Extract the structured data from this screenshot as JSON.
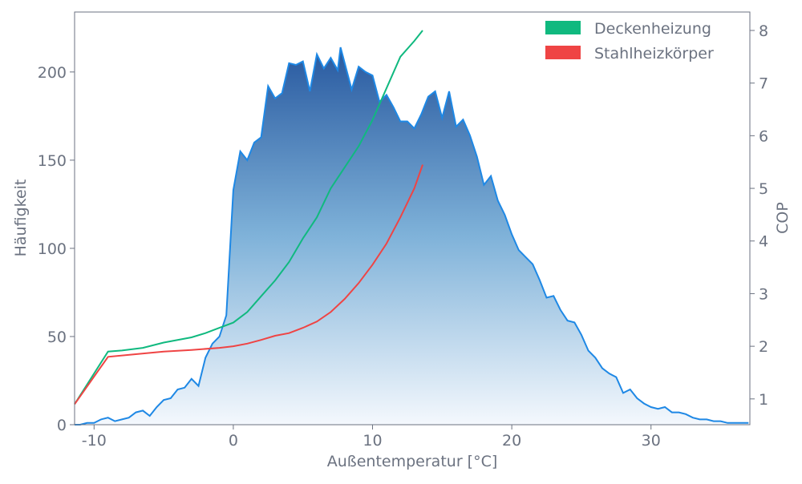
{
  "chart_data": {
    "type": "area",
    "xlabel": "Außentemperatur [°C]",
    "ylabel": "Häufigkeit",
    "y2label": "COP",
    "xlim": [
      -11.4,
      37.1
    ],
    "ylim": [
      0,
      234
    ],
    "y2lim": [
      0.51,
      8.35
    ],
    "xticks": [
      -10,
      0,
      10,
      20,
      30
    ],
    "yticks": [
      0,
      50,
      100,
      150,
      200
    ],
    "y2ticks": [
      1,
      2,
      3,
      4,
      5,
      6,
      7,
      8
    ],
    "legend": "upper right",
    "series": [
      {
        "type": "area",
        "color": "#1e88e5",
        "x": [
          -11.4,
          -11,
          -10.5,
          -10,
          -9.5,
          -9,
          -8.5,
          -8,
          -7.5,
          -7,
          -6.5,
          -6,
          -5.5,
          -5,
          -4.5,
          -4,
          -3.5,
          -3,
          -2.5,
          -2,
          -1.5,
          -1,
          -0.5,
          0,
          0.5,
          1,
          1.5,
          2,
          2.5,
          3,
          3.5,
          4,
          4.5,
          5,
          5.5,
          6,
          6.5,
          7,
          7.5,
          7.7,
          8.5,
          9,
          9.5,
          10,
          10.5,
          11,
          11.5,
          12,
          12.5,
          13,
          13.5,
          14,
          14.5,
          15,
          15.5,
          16,
          16.5,
          17,
          17.5,
          18,
          18.5,
          19,
          19.5,
          20,
          20.5,
          21,
          21.5,
          22,
          22.5,
          23,
          23.5,
          24,
          24.5,
          25,
          25.5,
          26,
          26.5,
          27,
          27.5,
          28,
          28.5,
          29,
          29.5,
          30,
          30.5,
          31,
          31.5,
          32,
          32.5,
          33,
          33.5,
          34,
          34.5,
          35,
          35.5,
          36,
          36.5,
          37
        ],
        "values": [
          0,
          0,
          1,
          1,
          3,
          4,
          2,
          3,
          4,
          7,
          8,
          5,
          10,
          14,
          15,
          20,
          21,
          26,
          22,
          38,
          46,
          50,
          62,
          133,
          155,
          150,
          160,
          163,
          192,
          185,
          188,
          205,
          204,
          206,
          189,
          210,
          202,
          208,
          201,
          214,
          190,
          203,
          200,
          198,
          183,
          187,
          180,
          172,
          172,
          168,
          176,
          186,
          189,
          174,
          189,
          169,
          173,
          164,
          152,
          136,
          141,
          127,
          119,
          108,
          99,
          95,
          91,
          82,
          72,
          73,
          65,
          59,
          58,
          51,
          42,
          38,
          32,
          29,
          27,
          18,
          20,
          15,
          12,
          10,
          9,
          10,
          7,
          7,
          6,
          4,
          3,
          3,
          2,
          2,
          1,
          1,
          1,
          1
        ]
      },
      {
        "type": "line",
        "name": "Deckenheizung",
        "color": "#10b97f",
        "axis": "y2",
        "x": [
          -11.4,
          -9,
          -8,
          -6.5,
          -5,
          -3,
          -2,
          -1,
          0,
          1,
          2,
          3,
          4,
          5,
          6,
          7,
          8,
          9,
          10,
          11,
          12,
          13,
          13.6
        ],
        "values": [
          0.9,
          1.9,
          1.92,
          1.97,
          2.07,
          2.17,
          2.25,
          2.35,
          2.45,
          2.65,
          2.95,
          3.25,
          3.6,
          4.05,
          4.45,
          5.0,
          5.4,
          5.8,
          6.3,
          6.9,
          7.5,
          7.8,
          8.0
        ]
      },
      {
        "type": "line",
        "name": "Stahlheizkörper",
        "color": "#ef4444",
        "axis": "y2",
        "x": [
          -11.4,
          -9,
          -7,
          -5,
          -3,
          -1,
          0,
          1,
          2,
          3,
          4,
          5,
          6,
          7,
          8,
          9,
          10,
          11,
          12,
          13,
          13.6
        ],
        "values": [
          0.9,
          1.8,
          1.85,
          1.9,
          1.93,
          1.97,
          2.0,
          2.05,
          2.12,
          2.2,
          2.25,
          2.35,
          2.47,
          2.65,
          2.9,
          3.2,
          3.55,
          3.95,
          4.45,
          5.0,
          5.45
        ]
      }
    ]
  }
}
